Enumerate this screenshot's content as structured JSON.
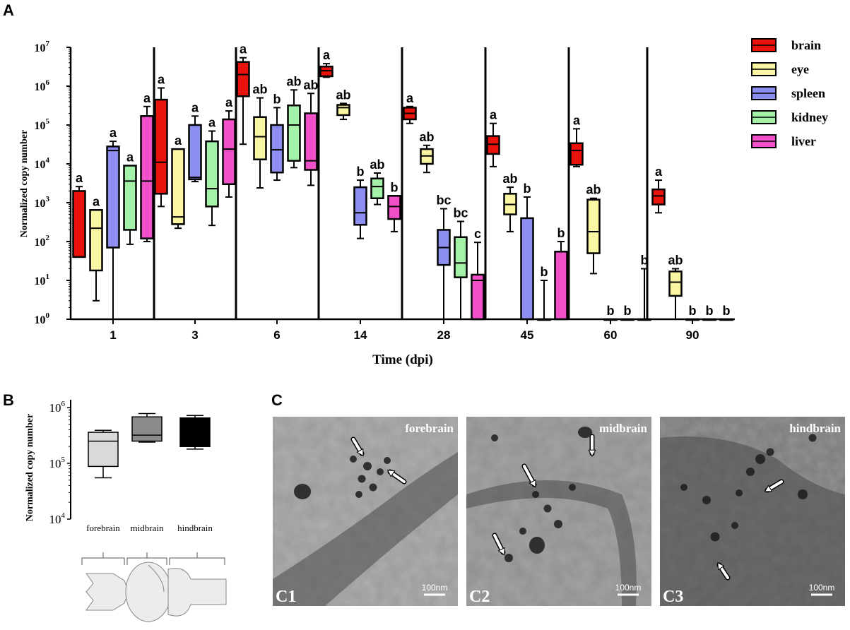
{
  "panels": {
    "a": "A",
    "b": "B",
    "c": "C"
  },
  "chart_data": [
    {
      "type": "box",
      "panel": "A",
      "xlabel": "Time (dpi)",
      "ylabel": "Normalized copy number",
      "yscale": "log",
      "ylim": [
        1,
        10000000
      ],
      "y_tick_labels": [
        {
          "base": "10",
          "exp": "0"
        },
        {
          "base": "10",
          "exp": "1"
        },
        {
          "base": "10",
          "exp": "2"
        },
        {
          "base": "10",
          "exp": "3"
        },
        {
          "base": "10",
          "exp": "4"
        },
        {
          "base": "10",
          "exp": "5"
        },
        {
          "base": "10",
          "exp": "6"
        },
        {
          "base": "10",
          "exp": "7"
        }
      ],
      "legend_position": "right",
      "legend": [
        {
          "name": "brain",
          "color": "#e8140c"
        },
        {
          "name": "eye",
          "color": "#fbf6a4"
        },
        {
          "name": "spleen",
          "color": "#8d8ff0"
        },
        {
          "name": "kidney",
          "color": "#a4f2a8"
        },
        {
          "name": "liver",
          "color": "#f150c8"
        }
      ],
      "categories": [
        "1",
        "3",
        "6",
        "14",
        "28",
        "45",
        "60",
        "90"
      ],
      "groups": [
        {
          "time": "1",
          "boxes": [
            {
              "series": "brain",
              "min": 40,
              "q1": 40,
              "median": 40,
              "q3": 2000,
              "max": 2600,
              "sig": "a"
            },
            {
              "series": "eye",
              "min": 3,
              "q1": 18,
              "median": 220,
              "q3": 650,
              "max": 650,
              "sig": "a"
            },
            {
              "series": "spleen",
              "min": 1,
              "q1": 70,
              "median": 22000,
              "q3": 28000,
              "max": 38000,
              "sig": "a"
            },
            {
              "series": "kidney",
              "min": 85,
              "q1": 200,
              "median": 3600,
              "q3": 9000,
              "max": 9000,
              "sig": "a"
            },
            {
              "series": "liver",
              "min": 100,
              "q1": 120,
              "median": 3600,
              "q3": 170000,
              "max": 300000,
              "sig": "a"
            }
          ]
        },
        {
          "time": "3",
          "boxes": [
            {
              "series": "brain",
              "min": 800,
              "q1": 1700,
              "median": 11000,
              "q3": 450000,
              "max": 900000,
              "sig": "a"
            },
            {
              "series": "eye",
              "min": 220,
              "q1": 280,
              "median": 430,
              "q3": 24000,
              "max": 24000,
              "sig": "a"
            },
            {
              "series": "spleen",
              "min": 3500,
              "q1": 4000,
              "median": 4500,
              "q3": 100000,
              "max": 170000,
              "sig": "a"
            },
            {
              "series": "kidney",
              "min": 260,
              "q1": 800,
              "median": 2300,
              "q3": 38000,
              "max": 70000,
              "sig": "a"
            },
            {
              "series": "liver",
              "min": 1400,
              "q1": 3000,
              "median": 24000,
              "q3": 140000,
              "max": 230000,
              "sig": "a"
            }
          ]
        },
        {
          "time": "6",
          "boxes": [
            {
              "series": "brain",
              "min": 32000,
              "q1": 550000,
              "median": 2000000,
              "q3": 4200000,
              "max": 5400000,
              "sig": "a"
            },
            {
              "series": "eye",
              "min": 2400,
              "q1": 13000,
              "median": 50000,
              "q3": 160000,
              "max": 500000,
              "sig": "ab"
            },
            {
              "series": "spleen",
              "min": 3800,
              "q1": 6000,
              "median": 23000,
              "q3": 100000,
              "max": 280000,
              "sig": "b"
            },
            {
              "series": "kidney",
              "min": 8000,
              "q1": 12000,
              "median": 100000,
              "q3": 320000,
              "max": 800000,
              "sig": "ab"
            },
            {
              "series": "liver",
              "min": 2800,
              "q1": 7000,
              "median": 12000,
              "q3": 200000,
              "max": 650000,
              "sig": "ab"
            }
          ]
        },
        {
          "time": "14",
          "boxes": [
            {
              "series": "brain",
              "min": 1700000,
              "q1": 1800000,
              "median": 2500000,
              "q3": 3200000,
              "max": 3800000,
              "sig": "a"
            },
            {
              "series": "eye",
              "min": 140000,
              "q1": 180000,
              "median": 280000,
              "q3": 330000,
              "max": 360000,
              "sig": "ab"
            },
            {
              "series": "spleen",
              "min": 120,
              "q1": 270,
              "median": 550,
              "q3": 2500,
              "max": 3800,
              "sig": "b"
            },
            {
              "series": "kidney",
              "min": 900,
              "q1": 1300,
              "median": 2600,
              "q3": 4200,
              "max": 5800,
              "sig": "ab"
            },
            {
              "series": "liver",
              "min": 180,
              "q1": 380,
              "median": 800,
              "q3": 1500,
              "max": 1500,
              "sig": "b"
            }
          ]
        },
        {
          "time": "28",
          "boxes": [
            {
              "series": "brain",
              "min": 110000,
              "q1": 140000,
              "median": 200000,
              "q3": 280000,
              "max": 300000,
              "sig": "a"
            },
            {
              "series": "eye",
              "min": 6000,
              "q1": 10000,
              "median": 16000,
              "q3": 24000,
              "max": 30000,
              "sig": "ab"
            },
            {
              "series": "spleen",
              "min": 1,
              "q1": 25,
              "median": 70,
              "q3": 200,
              "max": 700,
              "sig": "bc"
            },
            {
              "series": "kidney",
              "min": 1,
              "q1": 12,
              "median": 28,
              "q3": 130,
              "max": 330,
              "sig": "bc"
            },
            {
              "series": "liver",
              "min": 1,
              "q1": 1,
              "median": 10,
              "q3": 14,
              "max": 95,
              "sig": "c"
            }
          ]
        },
        {
          "time": "45",
          "boxes": [
            {
              "series": "brain",
              "min": 8500,
              "q1": 18000,
              "median": 32000,
              "q3": 52000,
              "max": 110000,
              "sig": "a"
            },
            {
              "series": "eye",
              "min": 180,
              "q1": 500,
              "median": 900,
              "q3": 1700,
              "max": 2500,
              "sig": "ab"
            },
            {
              "series": "spleen",
              "min": 1,
              "q1": 1,
              "median": 1,
              "q3": 400,
              "max": 1400,
              "sig": "b"
            },
            {
              "series": "kidney",
              "min": 1,
              "q1": 1,
              "median": 1,
              "q3": 1,
              "max": 10,
              "sig": "b"
            },
            {
              "series": "liver",
              "min": 1,
              "q1": 1,
              "median": 1,
              "q3": 55,
              "max": 100,
              "sig": "b"
            }
          ]
        },
        {
          "time": "60",
          "boxes": [
            {
              "series": "brain",
              "min": 8500,
              "q1": 9500,
              "median": 22000,
              "q3": 34000,
              "max": 80000,
              "sig": "a"
            },
            {
              "series": "eye",
              "min": 15,
              "q1": 50,
              "median": 180,
              "q3": 1200,
              "max": 1300,
              "sig": "ab"
            },
            {
              "series": "spleen",
              "min": 1,
              "q1": 1,
              "median": 1,
              "q3": 1,
              "max": 1,
              "sig": "b"
            },
            {
              "series": "kidney",
              "min": 1,
              "q1": 1,
              "median": 1,
              "q3": 1,
              "max": 1,
              "sig": "b"
            },
            {
              "series": "liver",
              "min": 1,
              "q1": 1,
              "median": 1,
              "q3": 1,
              "max": 20,
              "sig": "b"
            }
          ]
        },
        {
          "time": "90",
          "boxes": [
            {
              "series": "brain",
              "min": 550,
              "q1": 900,
              "median": 1500,
              "q3": 2200,
              "max": 3800,
              "sig": "a"
            },
            {
              "series": "eye",
              "min": 1,
              "q1": 4,
              "median": 9,
              "q3": 17,
              "max": 20,
              "sig": "ab"
            },
            {
              "series": "spleen",
              "min": 1,
              "q1": 1,
              "median": 1,
              "q3": 1,
              "max": 1,
              "sig": "b"
            },
            {
              "series": "kidney",
              "min": 1,
              "q1": 1,
              "median": 1,
              "q3": 1,
              "max": 1,
              "sig": "b"
            },
            {
              "series": "liver",
              "min": 1,
              "q1": 1,
              "median": 1,
              "q3": 1,
              "max": 1,
              "sig": "b"
            }
          ]
        }
      ]
    },
    {
      "type": "box",
      "panel": "B",
      "ylabel": "Normalized copy number",
      "yscale": "log",
      "ylim": [
        10000,
        1000000
      ],
      "y_tick_labels": [
        {
          "base": "10",
          "exp": "4"
        },
        {
          "base": "10",
          "exp": "5"
        },
        {
          "base": "10",
          "exp": "6"
        }
      ],
      "categories": [
        "forebrain",
        "midbrain",
        "hindbrain"
      ],
      "boxes": [
        {
          "category": "forebrain",
          "color": "#d9d9d9",
          "min": 55000,
          "q1": 88000,
          "median": 250000,
          "q3": 360000,
          "max": 390000
        },
        {
          "category": "midbrain",
          "color": "#8c8c8c",
          "min": 240000,
          "q1": 250000,
          "median": 320000,
          "q3": 680000,
          "max": 780000
        },
        {
          "category": "hindbrain",
          "color": "#000000",
          "min": 180000,
          "q1": 200000,
          "median": 400000,
          "q3": 650000,
          "max": 720000
        }
      ]
    }
  ],
  "micrographs": [
    {
      "label": "forebrain",
      "panel_id": "C1",
      "scale": "100nm"
    },
    {
      "label": "midbrain",
      "panel_id": "C2",
      "scale": "100nm"
    },
    {
      "label": "hindbrain",
      "panel_id": "C3",
      "scale": "100nm"
    }
  ]
}
